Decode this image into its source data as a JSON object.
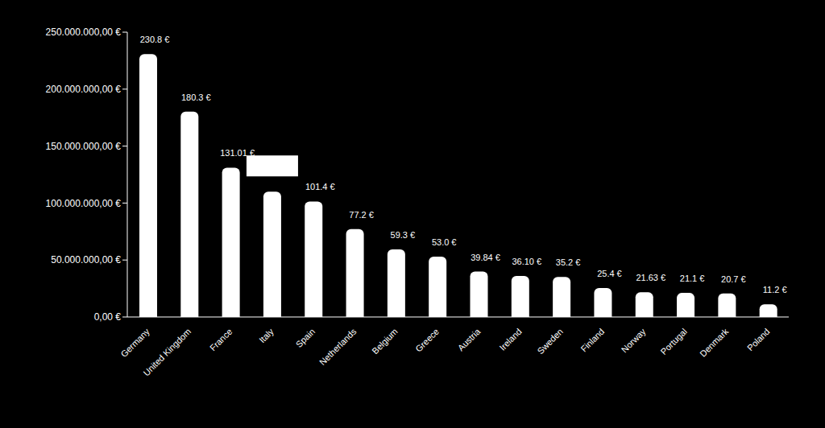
{
  "chart_data": {
    "type": "bar",
    "categories": [
      "Germany",
      "United Kingdom",
      "France",
      "Italy",
      "Spain",
      "Netherlands",
      "Belgium",
      "Greece",
      "Austria",
      "Ireland",
      "Sweden",
      "Finland",
      "Norway",
      "Portugal",
      "Denmark",
      "Poland"
    ],
    "values": [
      230800000,
      180300000,
      131010000,
      110000000,
      101400000,
      77200000,
      59300000,
      53000000,
      39840000,
      36100000,
      35200000,
      25400000,
      21630000,
      21100000,
      20700000,
      11200000
    ],
    "value_labels": [
      "230.8 €",
      "180.3 €",
      "131.01 €",
      null,
      "101.4 €",
      "77.2 €",
      "59.3 €",
      "53.0 €",
      "39.84 €",
      "36.10 €",
      "35.2 €",
      "25.4 €",
      "21.63 €",
      "21.1 €",
      "20.7 €",
      "11.2 €"
    ],
    "data_labels": true,
    "color": "#ffffff",
    "ylim": [
      0,
      250000000
    ],
    "yticks": [
      {
        "value": 0,
        "label": "0,00 €"
      },
      {
        "value": 50000000,
        "label": "50.000.000,00 €"
      },
      {
        "value": 100000000,
        "label": "100.000.000,00 €"
      },
      {
        "value": 150000000,
        "label": "150.000.000,00 €"
      },
      {
        "value": 200000000,
        "label": "200.000.000,00 €"
      },
      {
        "value": 250000000,
        "label": "250.000.000,00 €"
      }
    ],
    "grid": false
  }
}
